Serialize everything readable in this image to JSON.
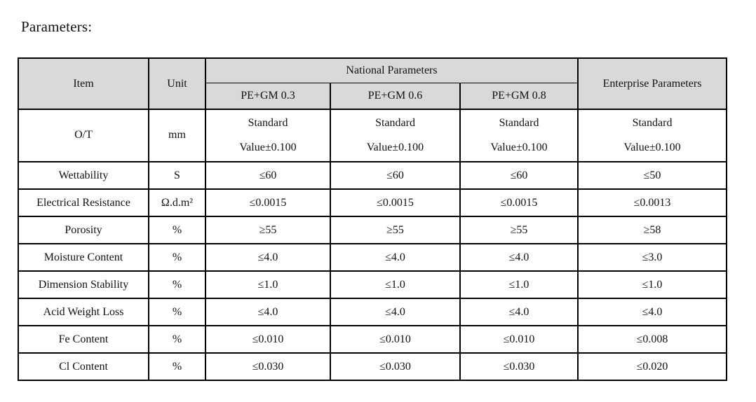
{
  "page": {
    "title": "Parameters:"
  },
  "table": {
    "header": {
      "item": "Item",
      "unit": "Unit",
      "national": "National Parameters",
      "national_subcols": [
        "PE+GM 0.3",
        "PE+GM 0.6",
        "PE+GM 0.8"
      ],
      "enterprise": "Enterprise Parameters"
    },
    "rows": [
      {
        "item": "O/T",
        "unit": "mm",
        "values": [
          [
            "Standard",
            "Value±0.100"
          ],
          [
            "Standard",
            "Value±0.100"
          ],
          [
            "Standard",
            "Value±0.100"
          ],
          [
            "Standard",
            "Value±0.100"
          ]
        ]
      },
      {
        "item": "Wettability",
        "unit": "S",
        "values": [
          "≤60",
          "≤60",
          "≤60",
          "≤50"
        ]
      },
      {
        "item": "Electrical Resistance",
        "unit": "Ω.d.m²",
        "values": [
          "≤0.0015",
          "≤0.0015",
          "≤0.0015",
          "≤0.0013"
        ]
      },
      {
        "item": "Porosity",
        "unit": "%",
        "values": [
          "≥55",
          "≥55",
          "≥55",
          "≥58"
        ]
      },
      {
        "item": "Moisture Content",
        "unit": "%",
        "values": [
          "≤4.0",
          "≤4.0",
          "≤4.0",
          "≤3.0"
        ]
      },
      {
        "item": "Dimension Stability",
        "unit": "%",
        "values": [
          "≤1.0",
          "≤1.0",
          "≤1.0",
          "≤1.0"
        ]
      },
      {
        "item": "Acid Weight Loss",
        "unit": "%",
        "values": [
          "≤4.0",
          "≤4.0",
          "≤4.0",
          "≤4.0"
        ]
      },
      {
        "item": "Fe Content",
        "unit": "%",
        "values": [
          "≤0.010",
          "≤0.010",
          "≤0.010",
          "≤0.008"
        ]
      },
      {
        "item": "Cl Content",
        "unit": "%",
        "values": [
          "≤0.030",
          "≤0.030",
          "≤0.030",
          "≤0.020"
        ]
      }
    ],
    "colors": {
      "header_bg": "#d9d9d9",
      "border": "#000000",
      "text": "#111111",
      "row_bg": "#ffffff"
    }
  }
}
